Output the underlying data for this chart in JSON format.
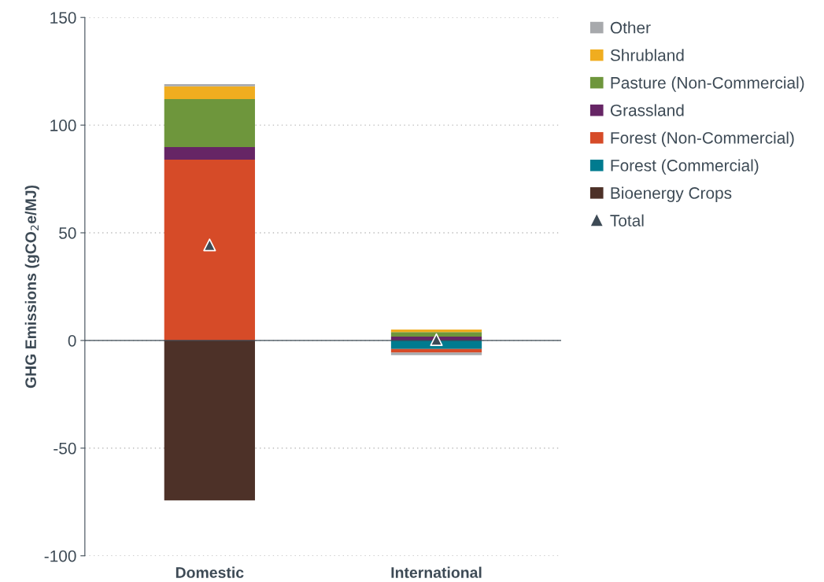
{
  "chart_data": {
    "type": "bar",
    "stacked": true,
    "ylabel": "GHG Emissions (gCO$_{2}$e/MJ)",
    "categories": [
      "Domestic",
      "International"
    ],
    "series": [
      {
        "name": "Bioenergy Crops",
        "color": "#4d3128",
        "values": [
          -74.3,
          null
        ]
      },
      {
        "name": "Forest (Commercial)",
        "color": "#007b8f",
        "values": [
          0,
          -4.0
        ]
      },
      {
        "name": "Forest (Non-Commercial)",
        "color": "#d64b28",
        "values": [
          84,
          -1.6
        ]
      },
      {
        "name": "Grassland",
        "color": "#662565",
        "values": [
          5.8,
          1.8
        ]
      },
      {
        "name": "Pasture (Non-Commercial)",
        "color": "#6e963c",
        "values": [
          22.3,
          2.1
        ]
      },
      {
        "name": "Shrubland",
        "color": "#f0ad1f",
        "values": [
          5.9,
          1.2
        ]
      },
      {
        "name": "Other",
        "color": "#a7a9ac",
        "values": [
          1,
          -1.2
        ]
      },
      {
        "name": "Total",
        "type": "scatter",
        "color": "#3d4a55",
        "marker": "triangle",
        "x": [
          "Domestic",
          "International"
        ],
        "values": [
          44.4,
          0.4
        ]
      }
    ],
    "ylim": [
      -100,
      150
    ],
    "yticks": [
      -100,
      -50,
      0,
      50,
      100,
      150
    ],
    "grid": "y",
    "legend": "top right",
    "ref_lines": [
      {
        "axis": "y",
        "value": 0,
        "color": "#3d4a55",
        "line_style": "solid"
      }
    ]
  }
}
